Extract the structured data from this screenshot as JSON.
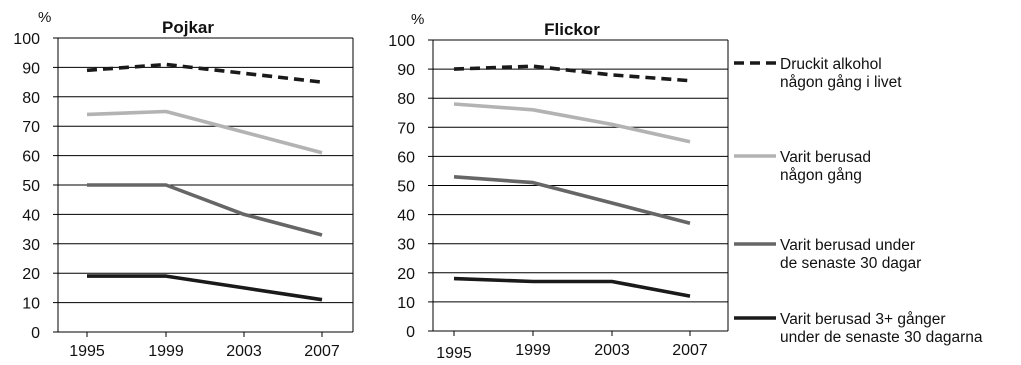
{
  "chart_data": [
    {
      "type": "line",
      "title": "Pojkar",
      "ylabel": "%",
      "x": [
        "1995",
        "1999",
        "2003",
        "2007"
      ],
      "ylim": [
        0,
        100
      ],
      "yticks": [
        "0",
        "10",
        "20",
        "30",
        "40",
        "50",
        "60",
        "70",
        "80",
        "90",
        "100"
      ],
      "grid": true,
      "series": [
        {
          "name": "Druckit alkohol någon gång i livet",
          "color": "#1a1a1a",
          "dash": true,
          "values": [
            89,
            91,
            88,
            85
          ]
        },
        {
          "name": "Varit berusad någon gång",
          "color": "#b3b3b3",
          "dash": false,
          "values": [
            74,
            75,
            68,
            61
          ]
        },
        {
          "name": "Varit berusad under de senaste 30 dagar",
          "color": "#666666",
          "dash": false,
          "values": [
            50,
            50,
            40,
            33
          ]
        },
        {
          "name": "Varit berusad 3+ gånger under de senaste 30 dagarna",
          "color": "#1a1a1a",
          "dash": false,
          "values": [
            19,
            19,
            15,
            11
          ]
        }
      ]
    },
    {
      "type": "line",
      "title": "Flickor",
      "ylabel": "%",
      "x": [
        "1995",
        "1999",
        "2003",
        "2007"
      ],
      "ylim": [
        0,
        100
      ],
      "yticks": [
        "0",
        "10",
        "20",
        "30",
        "40",
        "50",
        "60",
        "70",
        "80",
        "90",
        "100"
      ],
      "grid": true,
      "series": [
        {
          "name": "Druckit alkohol någon gång i livet",
          "color": "#1a1a1a",
          "dash": true,
          "values": [
            90,
            91,
            88,
            86
          ]
        },
        {
          "name": "Varit berusad någon gång",
          "color": "#b3b3b3",
          "dash": false,
          "values": [
            78,
            76,
            71,
            65
          ]
        },
        {
          "name": "Varit berusad under de senaste 30 dagar",
          "color": "#666666",
          "dash": false,
          "values": [
            53,
            51,
            44,
            37
          ]
        },
        {
          "name": "Varit berusad 3+ gånger under de senaste 30 dagarna",
          "color": "#1a1a1a",
          "dash": false,
          "values": [
            18,
            17,
            17,
            12
          ]
        }
      ]
    }
  ],
  "legend": [
    {
      "line1": "Druckit alkohol",
      "line2": "någon gång i livet",
      "color": "#1a1a1a",
      "dash": true
    },
    {
      "line1": "Varit berusad",
      "line2": "någon gång",
      "color": "#b3b3b3",
      "dash": false
    },
    {
      "line1": "Varit berusad under",
      "line2": "de senaste 30 dagar",
      "color": "#666666",
      "dash": false
    },
    {
      "line1": "Varit berusad 3+ gånger",
      "line2": "under de senaste 30 dagarna",
      "color": "#1a1a1a",
      "dash": false
    }
  ]
}
